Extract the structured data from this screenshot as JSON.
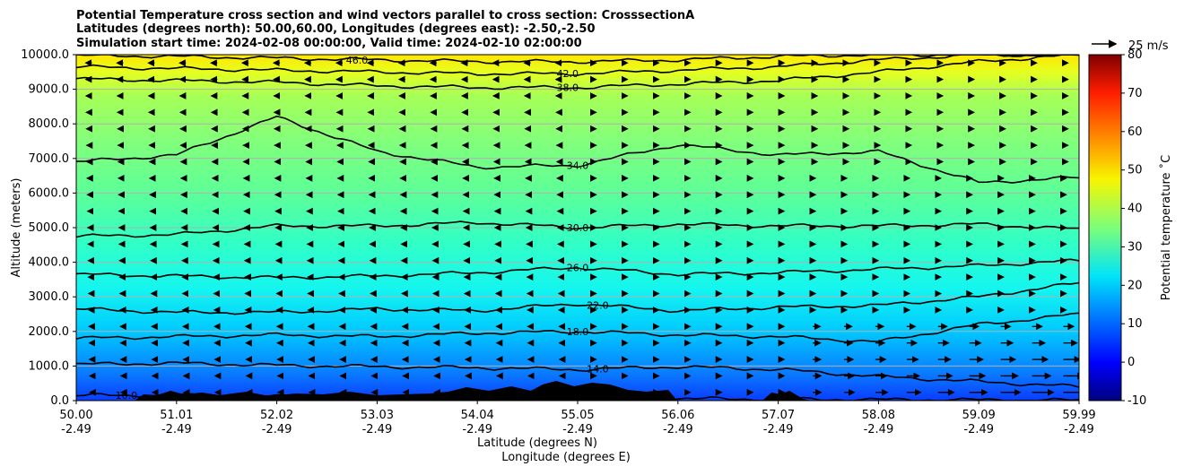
{
  "chart_data": {
    "type": "contour",
    "title_lines": [
      "Potential Temperature cross section and wind vectors parallel to cross section: CrosssectionA",
      "Latitudes (degrees north): 50.00,60.00, Longitudes (degrees east): -2.50,-2.50",
      "Simulation start time: 2024-02-08 00:00:00, Valid time: 2024-02-10 02:00:00"
    ],
    "ylabel": "Altitude (meters)",
    "xlabel_lat": "Latitude (degrees N)",
    "xlabel_lon": "Longitude (degrees E)",
    "ylim": [
      0,
      10000
    ],
    "xlim": [
      50.0,
      59.99
    ],
    "yticks": [
      "0.0",
      "1000.0",
      "2000.0",
      "3000.0",
      "4000.0",
      "5000.0",
      "6000.0",
      "7000.0",
      "8000.0",
      "9000.0",
      "10000.0"
    ],
    "xticks": [
      {
        "lat": "50.00",
        "lon": "-2.49"
      },
      {
        "lat": "51.01",
        "lon": "-2.49"
      },
      {
        "lat": "52.02",
        "lon": "-2.49"
      },
      {
        "lat": "53.03",
        "lon": "-2.49"
      },
      {
        "lat": "54.04",
        "lon": "-2.49"
      },
      {
        "lat": "55.05",
        "lon": "-2.49"
      },
      {
        "lat": "56.06",
        "lon": "-2.49"
      },
      {
        "lat": "57.07",
        "lon": "-2.49"
      },
      {
        "lat": "58.08",
        "lon": "-2.49"
      },
      {
        "lat": "59.09",
        "lon": "-2.49"
      },
      {
        "lat": "59.99",
        "lon": "-2.49"
      }
    ],
    "contour_levels": [
      {
        "value": 10,
        "label": "10.0",
        "altitude_m": [
          150,
          150,
          120,
          100,
          80,
          70,
          60,
          40,
          30,
          20,
          10
        ]
      },
      {
        "value": 14,
        "label": "14.0",
        "altitude_m": [
          1050,
          1080,
          1020,
          980,
          950,
          900,
          980,
          900,
          700,
          550,
          400
        ]
      },
      {
        "value": 18,
        "label": "18.0",
        "altitude_m": [
          1800,
          1850,
          1900,
          1850,
          1950,
          2000,
          1900,
          1850,
          1700,
          2200,
          2500
        ]
      },
      {
        "value": 22,
        "label": "22.0",
        "altitude_m": [
          2650,
          2550,
          2550,
          2650,
          2600,
          2800,
          2600,
          2700,
          2750,
          3000,
          3400
        ]
      },
      {
        "value": 26,
        "label": "26.0",
        "altitude_m": [
          3650,
          3600,
          3550,
          3600,
          3700,
          3850,
          3650,
          3700,
          3800,
          3900,
          4050
        ]
      },
      {
        "value": 30,
        "label": "30.0",
        "altitude_m": [
          4750,
          4800,
          5050,
          5050,
          5150,
          5000,
          5100,
          5050,
          5050,
          5100,
          4950
        ]
      },
      {
        "value": 34,
        "label": "34.0",
        "altitude_m": [
          6900,
          7100,
          8200,
          7200,
          6750,
          6800,
          7400,
          7100,
          7200,
          6300,
          6450
        ]
      },
      {
        "value": 38,
        "label": "38.0",
        "altitude_m": [
          9300,
          9250,
          9200,
          9100,
          9050,
          9050,
          9150,
          9250,
          9500,
          9800,
          10000
        ]
      },
      {
        "value": 42,
        "label": "42.0",
        "altitude_m": [
          9650,
          9600,
          9550,
          9500,
          9450,
          9450,
          9550,
          9650,
          9850,
          10000,
          10000
        ]
      },
      {
        "value": 46,
        "label": "46.0",
        "altitude_m": [
          9980,
          9950,
          9900,
          9850,
          9800,
          9800,
          9850,
          9950,
          10000,
          10000,
          10000
        ]
      }
    ],
    "reference_vector": {
      "label": "25 m/s"
    },
    "colorbar": {
      "label": "Potential temperature ˚C",
      "ticks": [
        "-10",
        "0",
        "10",
        "20",
        "30",
        "40",
        "50",
        "60",
        "70",
        "80"
      ],
      "range": [
        -10,
        80
      ]
    }
  }
}
